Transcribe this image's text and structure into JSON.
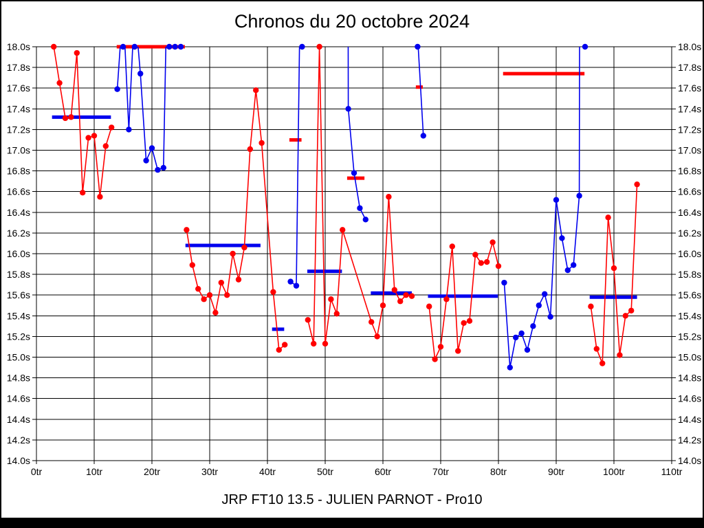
{
  "page": {
    "title": "Chronos du 20 octobre 2024",
    "subtitle": "JRP FT10 13.5 - JULIEN PARNOT - Pro10"
  },
  "chart_data": {
    "type": "line",
    "title": "Chronos du 20 octobre 2024",
    "subtitle": "JRP FT10 13.5 - JULIEN PARNOT - Pro10",
    "x_unit": "tr",
    "y_unit": "s",
    "xlim": [
      0,
      110
    ],
    "xtick_step": 10,
    "ylim": [
      14.0,
      18.0
    ],
    "ytick_step": 0.2,
    "grid": true,
    "y_labels_both_sides": true,
    "colors": {
      "red": "#ff0000",
      "blue": "#0000ee"
    },
    "note": "points are [tr, seconds_displayed, optional_true_seconds_for_clipped_line, optional_lead_flag]; values above 18.0s are clipped at the top of the plot",
    "series": [
      {
        "name": "red-times",
        "color": "red",
        "segments": [
          {
            "points": [
              [
                3,
                18.0
              ],
              [
                4,
                17.65
              ],
              [
                5,
                17.31
              ],
              [
                6,
                17.32
              ],
              [
                7,
                17.94
              ],
              [
                8,
                16.59
              ],
              [
                9,
                17.12
              ],
              [
                10,
                17.14
              ],
              [
                11,
                16.55
              ],
              [
                12,
                17.04
              ],
              [
                13,
                17.22
              ]
            ]
          },
          {
            "points": [
              [
                26,
                16.23
              ],
              [
                27,
                15.89
              ],
              [
                28,
                15.66
              ],
              [
                29,
                15.56
              ],
              [
                30,
                15.6
              ],
              [
                31,
                15.43
              ],
              [
                32,
                15.72
              ],
              [
                33,
                15.6
              ],
              [
                34,
                16.0
              ],
              [
                35,
                15.75
              ],
              [
                36,
                16.06
              ],
              [
                37,
                17.01
              ],
              [
                38,
                17.58
              ],
              [
                39,
                17.07
              ],
              [
                41,
                15.63
              ],
              [
                42,
                15.07
              ],
              [
                43,
                15.12
              ]
            ]
          },
          {
            "points": [
              [
                47,
                15.36
              ],
              [
                48,
                15.13
              ],
              [
                49,
                18.0
              ],
              [
                50,
                15.13
              ],
              [
                51,
                15.56
              ],
              [
                52,
                15.42
              ],
              [
                53,
                16.23
              ],
              [
                58,
                15.34
              ],
              [
                59,
                15.2
              ],
              [
                60,
                15.5
              ],
              [
                61,
                16.55
              ],
              [
                62,
                15.65
              ],
              [
                63,
                15.54
              ],
              [
                64,
                15.6
              ],
              [
                65,
                15.59
              ]
            ]
          },
          {
            "points": [
              [
                68,
                15.49
              ],
              [
                69,
                14.98
              ],
              [
                70,
                15.1
              ],
              [
                71,
                15.56
              ],
              [
                72,
                16.07
              ],
              [
                73,
                15.06
              ],
              [
                74,
                15.33
              ],
              [
                75,
                15.35
              ],
              [
                76,
                15.99
              ],
              [
                77,
                15.91
              ],
              [
                78,
                15.92
              ],
              [
                79,
                16.11
              ],
              [
                80,
                15.88
              ]
            ]
          },
          {
            "points": [
              [
                96,
                15.49
              ],
              [
                97,
                15.08
              ],
              [
                98,
                14.94
              ],
              [
                99,
                16.35
              ],
              [
                100,
                15.86
              ],
              [
                101,
                15.02
              ],
              [
                102,
                15.4
              ],
              [
                103,
                15.45
              ],
              [
                104,
                16.67
              ]
            ]
          }
        ]
      },
      {
        "name": "blue-times",
        "color": "blue",
        "segments": [
          {
            "points": [
              [
                14,
                17.59
              ],
              [
                15,
                18.0,
                18.4
              ],
              [
                16,
                17.2
              ],
              [
                17,
                18.0,
                18.4
              ],
              [
                18,
                17.74
              ],
              [
                19,
                16.9
              ],
              [
                20,
                17.02
              ],
              [
                21,
                16.81
              ],
              [
                22,
                16.83
              ],
              [
                23,
                18.0,
                19.7
              ],
              [
                24,
                18.0,
                19.7
              ],
              [
                25,
                18.0,
                19.7
              ]
            ]
          },
          {
            "points": [
              [
                44,
                15.73
              ],
              [
                45,
                15.69
              ],
              [
                46,
                18.0,
                19.9
              ]
            ]
          },
          {
            "points": [
              [
                53.8,
                18.0,
                24.0,
                true
              ],
              [
                54,
                17.4
              ],
              [
                55,
                16.78
              ],
              [
                56,
                16.44
              ],
              [
                57,
                16.33
              ]
            ]
          },
          {
            "points": [
              [
                66,
                18.0,
                18.1
              ],
              [
                67,
                17.14
              ]
            ]
          },
          {
            "points": [
              [
                81,
                15.72
              ],
              [
                82,
                14.9
              ],
              [
                83,
                15.19
              ],
              [
                84,
                15.23
              ],
              [
                85,
                15.07
              ],
              [
                86,
                15.3
              ],
              [
                87,
                15.5
              ],
              [
                88,
                15.61
              ],
              [
                89,
                15.39
              ],
              [
                90,
                16.52
              ],
              [
                91,
                16.15
              ],
              [
                92,
                15.84
              ],
              [
                93,
                15.89
              ],
              [
                94,
                16.56
              ],
              [
                95,
                18.0,
                47.0
              ]
            ]
          }
        ]
      }
    ],
    "avg_bars": [
      {
        "color": "blue",
        "value": 17.32,
        "from": 2.7,
        "to": 12.9
      },
      {
        "color": "red",
        "value": 18.0,
        "from": 13.9,
        "to": 25.7
      },
      {
        "color": "blue",
        "value": 16.08,
        "from": 25.8,
        "to": 38.8
      },
      {
        "color": "blue",
        "value": 15.27,
        "from": 40.8,
        "to": 42.9
      },
      {
        "color": "red",
        "value": 17.1,
        "from": 43.8,
        "to": 45.9
      },
      {
        "color": "blue",
        "value": 15.83,
        "from": 46.9,
        "to": 52.9
      },
      {
        "color": "red",
        "value": 16.73,
        "from": 53.8,
        "to": 56.8
      },
      {
        "color": "blue",
        "value": 15.62,
        "from": 57.9,
        "to": 65.0
      },
      {
        "color": "red",
        "value": 17.61,
        "from": 65.7,
        "to": 66.9
      },
      {
        "color": "blue",
        "value": 15.59,
        "from": 67.8,
        "to": 79.9
      },
      {
        "color": "red",
        "value": 17.74,
        "from": 80.8,
        "to": 94.9
      },
      {
        "color": "blue",
        "value": 15.58,
        "from": 95.8,
        "to": 104.0
      }
    ]
  }
}
